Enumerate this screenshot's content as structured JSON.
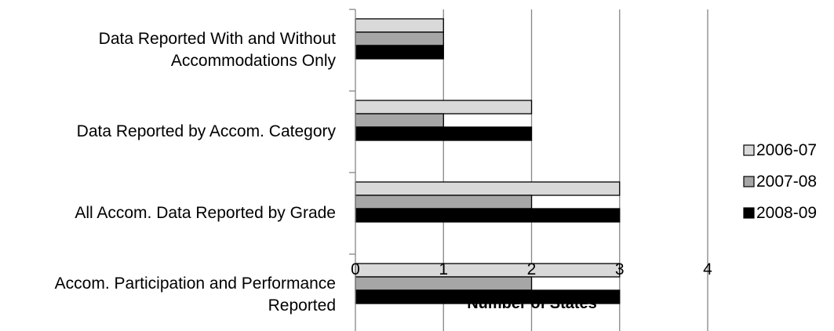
{
  "chart_data": {
    "type": "bar",
    "orientation": "horizontal",
    "title": "",
    "xlabel": "Number of States",
    "ylabel": "",
    "xlim": [
      0,
      4
    ],
    "ticks": [
      "0",
      "1",
      "2",
      "3",
      "4"
    ],
    "grid": true,
    "legend_position": "right",
    "categories": [
      [
        "Data Reported With and Without",
        "Accommodations Only"
      ],
      [
        "Data Reported by Accom. Category"
      ],
      [
        "All Accom. Data Reported by Grade"
      ],
      [
        "Accom. Participation and Performance",
        "Reported"
      ]
    ],
    "series": [
      {
        "name": "2006-07",
        "color": "#d9d9d9",
        "values": [
          1,
          2,
          3,
          3
        ]
      },
      {
        "name": "2007-08",
        "color": "#a6a6a6",
        "values": [
          1,
          1,
          2,
          2
        ]
      },
      {
        "name": "2008-09",
        "color": "#000000",
        "values": [
          1,
          2,
          3,
          3
        ]
      }
    ]
  }
}
